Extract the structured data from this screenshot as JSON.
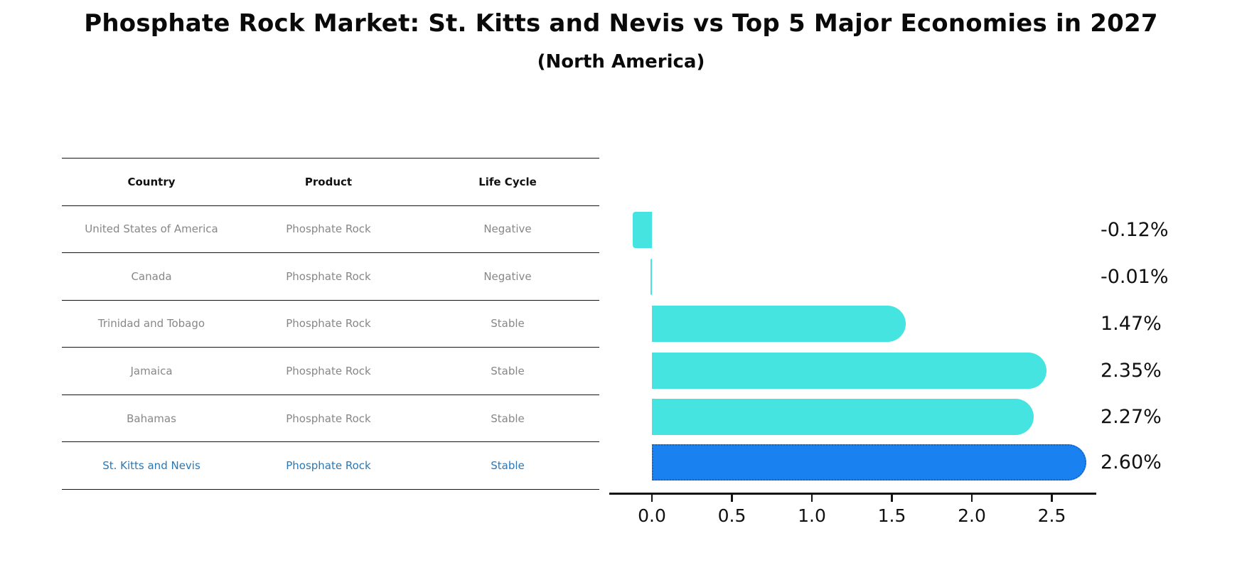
{
  "title": "Phosphate Rock Market: St. Kitts and Nevis vs Top 5 Major Economies in 2027",
  "subtitle": "(North America)",
  "table": {
    "headers": [
      "Country",
      "Product",
      "Life Cycle"
    ],
    "rows": [
      {
        "country": "United States of America",
        "product": "Phosphate Rock",
        "life_cycle": "Negative"
      },
      {
        "country": "Canada",
        "product": "Phosphate Rock",
        "life_cycle": "Negative"
      },
      {
        "country": "Trinidad and Tobago",
        "product": "Phosphate Rock",
        "life_cycle": "Stable"
      },
      {
        "country": "Jamaica",
        "product": "Phosphate Rock",
        "life_cycle": "Stable"
      },
      {
        "country": "Bahamas",
        "product": "Phosphate Rock",
        "life_cycle": "Stable"
      },
      {
        "country": "St. Kitts and Nevis",
        "product": "Phosphate Rock",
        "life_cycle": "Stable"
      }
    ]
  },
  "chart_data": {
    "type": "bar",
    "orientation": "horizontal",
    "title": "Phosphate Rock Market: St. Kitts and Nevis vs Top 5 Major Economies in 2027 (North America)",
    "categories": [
      "United States of America",
      "Canada",
      "Trinidad and Tobago",
      "Jamaica",
      "Bahamas",
      "St. Kitts and Nevis"
    ],
    "values": [
      -0.12,
      -0.01,
      1.47,
      2.35,
      2.27,
      2.6
    ],
    "value_labels": [
      "-0.12%",
      "-0.01%",
      "1.47%",
      "2.35%",
      "2.27%",
      "2.60%"
    ],
    "unit": "percent",
    "x_ticks": [
      0.0,
      0.5,
      1.0,
      1.5,
      2.0,
      2.5
    ],
    "x_tick_labels": [
      "0.0",
      "0.5",
      "1.0",
      "1.5",
      "2.0",
      "2.5"
    ],
    "xlim": [
      -0.26,
      2.78
    ],
    "grid": false,
    "legend": false,
    "highlight_index": 5,
    "colors": {
      "bar": "#45E4E0",
      "highlight_bar": "#1A82F0",
      "highlight_edge": "#1565C8",
      "row_text": "#878787",
      "highlight_text": "#2878B8",
      "label_text": "#111111"
    }
  }
}
